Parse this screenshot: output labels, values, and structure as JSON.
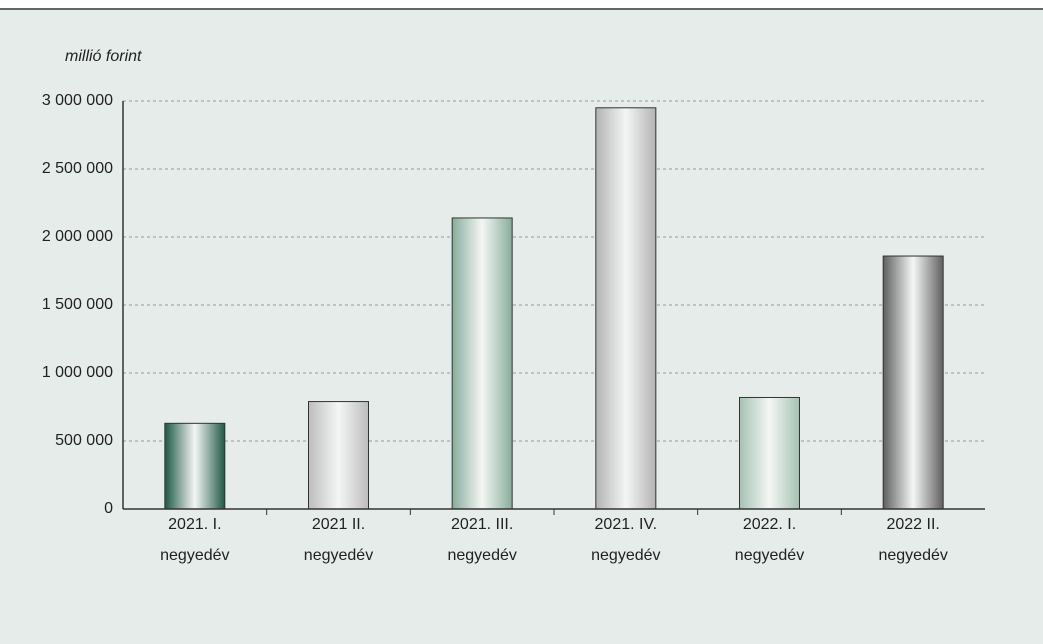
{
  "chart_data": {
    "type": "bar",
    "y_axis_label": "millió forint",
    "categories": [
      "2021. I.\nnegyedév",
      "2021 II.\nnegyedév",
      "2021. III.\nnegyedév",
      "2021. IV.\nnegyedév",
      "2022. I.\nnegyedév",
      "2022 II.\nnegyedév"
    ],
    "values": [
      630000,
      790000,
      2140000,
      2950000,
      820000,
      1860000
    ],
    "colors": [
      "#1e5a45",
      "#bdbdbd",
      "#86ad9c",
      "#b3b3b3",
      "#a3c2b3",
      "#5f5f5f"
    ],
    "ylim": [
      0,
      3000000
    ],
    "yticks": [
      0,
      {
        "value": 500000,
        "label": "500 000"
      },
      {
        "value": 1000000,
        "label": "1 000 000"
      },
      {
        "value": 1500000,
        "label": "1 500 000"
      },
      {
        "value": 2000000,
        "label": "2 000 000"
      },
      {
        "value": 2500000,
        "label": "2 500 000"
      },
      {
        "value": 3000000,
        "label": "3 000 000"
      }
    ],
    "grid": true
  }
}
